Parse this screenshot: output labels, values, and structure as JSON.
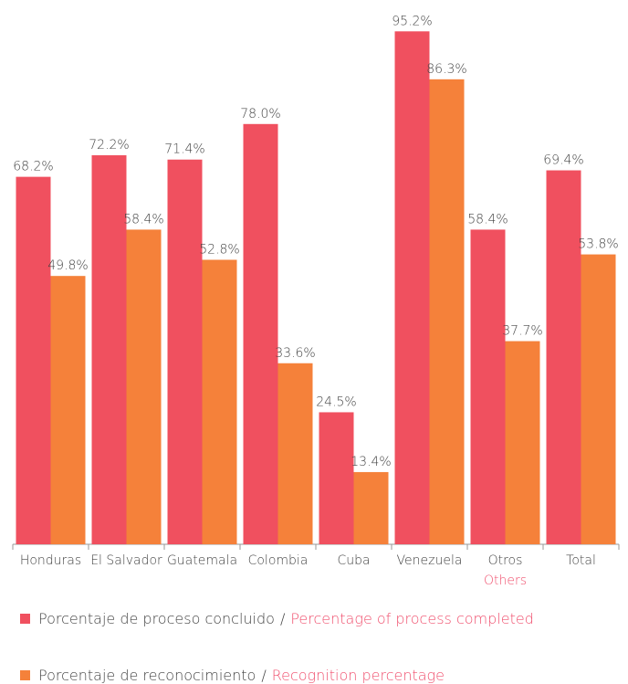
{
  "chart_data": {
    "type": "bar",
    "categories": [
      "Honduras",
      "El Salvador",
      "Guatemala",
      "Colombia",
      "Cuba",
      "Venezuela",
      "Otros",
      "Total"
    ],
    "category_translations": [
      null,
      null,
      null,
      null,
      null,
      null,
      "Others",
      null
    ],
    "legend_separator": "/",
    "series": [
      {
        "name": "Porcentaje de proceso concluido",
        "translation": "Percentage of process completed",
        "color": "#f0505f",
        "values": [
          68.2,
          72.2,
          71.4,
          78.0,
          24.5,
          95.2,
          58.4,
          69.4
        ],
        "value_labels": [
          "68.2%",
          "72.2%",
          "71.4%",
          "78.0%",
          "24.5%",
          "95.2%",
          "58.4%",
          "69.4%"
        ]
      },
      {
        "name": "Porcentaje de reconocimiento",
        "translation": "Recognition percentage",
        "color": "#f5813a",
        "values": [
          49.8,
          58.4,
          52.8,
          33.6,
          13.4,
          86.3,
          37.7,
          53.8
        ],
        "value_labels": [
          "49.8%",
          "58.4%",
          "52.8%",
          "33.6%",
          "13.4%",
          "86.3%",
          "37.7%",
          "53.8%"
        ]
      }
    ],
    "ylim": [
      0,
      100
    ],
    "legend_position": "bottom",
    "translation_color": "#f0506e"
  }
}
